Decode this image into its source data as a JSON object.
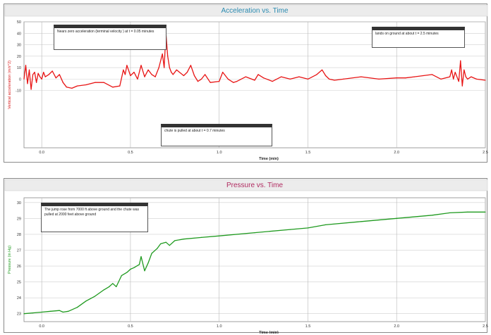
{
  "chart_data": [
    {
      "type": "line",
      "title": "Acceleration vs. Time",
      "xlabel": "Time (min)",
      "ylabel": "Vertical acceleration (m/s^2)",
      "xlim": [
        -0.1,
        2.5
      ],
      "ylim": [
        -60,
        50
      ],
      "xticks": [
        0,
        0.5,
        1.0,
        1.5,
        2.0,
        2.5
      ],
      "xtick_labels": [
        "0.0",
        "0.5",
        "1.0",
        "1.5",
        "2.0",
        "2.5"
      ],
      "yticks": [
        50,
        40,
        30,
        20,
        10,
        0,
        -10
      ],
      "ytick_labels": [
        "50",
        "40",
        "30",
        "20",
        "10",
        "0",
        "-10"
      ],
      "grid": true,
      "title_color": "#2a8ab0",
      "ylabel_color": "#d81b1b",
      "series": [
        {
          "color": "#e81414",
          "x": [
            -0.1,
            -0.09,
            -0.08,
            -0.07,
            -0.06,
            -0.05,
            -0.04,
            -0.03,
            -0.02,
            -0.01,
            0.0,
            0.01,
            0.02,
            0.04,
            0.06,
            0.08,
            0.1,
            0.12,
            0.14,
            0.17,
            0.2,
            0.25,
            0.3,
            0.35,
            0.4,
            0.44,
            0.46,
            0.47,
            0.48,
            0.5,
            0.52,
            0.54,
            0.56,
            0.58,
            0.6,
            0.62,
            0.64,
            0.66,
            0.68,
            0.69,
            0.7,
            0.71,
            0.72,
            0.73,
            0.74,
            0.76,
            0.8,
            0.82,
            0.84,
            0.86,
            0.88,
            0.9,
            0.92,
            0.95,
            1.0,
            1.02,
            1.05,
            1.08,
            1.1,
            1.15,
            1.2,
            1.22,
            1.25,
            1.3,
            1.35,
            1.4,
            1.45,
            1.5,
            1.55,
            1.58,
            1.6,
            1.62,
            1.65,
            1.7,
            1.8,
            1.9,
            2.0,
            2.05,
            2.1,
            2.15,
            2.2,
            2.25,
            2.3,
            2.31,
            2.32,
            2.33,
            2.35,
            2.36,
            2.37,
            2.38,
            2.39,
            2.4,
            2.42,
            2.45,
            2.5
          ],
          "y": [
            0,
            12,
            -4,
            8,
            -9,
            4,
            6,
            -3,
            5,
            2,
            0,
            6,
            2,
            4,
            7,
            1,
            4,
            -3,
            -7,
            -8,
            -6,
            -5,
            -3,
            -3,
            -7,
            -6,
            8,
            4,
            12,
            3,
            6,
            0,
            12,
            2,
            8,
            4,
            2,
            10,
            22,
            10,
            40,
            20,
            10,
            6,
            4,
            8,
            3,
            6,
            12,
            3,
            -2,
            0,
            4,
            -3,
            -2,
            6,
            0,
            -3,
            -2,
            2,
            -1,
            4,
            1,
            -2,
            2,
            0,
            2,
            0,
            4,
            8,
            3,
            0,
            -1,
            0,
            2,
            0,
            1,
            1,
            2,
            3,
            4,
            0,
            2,
            8,
            0,
            6,
            -2,
            16,
            -6,
            8,
            2,
            0,
            2,
            0,
            -1
          ]
        }
      ],
      "annotations": [
        {
          "text": "Nears zero acceleration (terminal velocity ) at t = 0.05 minutes"
        },
        {
          "text": "chute is pulled at about t = 0.7 minutes"
        },
        {
          "text": "lands on ground at about t = 2.5 minutes"
        }
      ]
    },
    {
      "type": "line",
      "title": "Pressure vs. Time",
      "xlabel": "Time (min)",
      "ylabel": "Pressure (in Hg)",
      "xlim": [
        -0.1,
        2.5
      ],
      "ylim": [
        22.5,
        30.3
      ],
      "xticks": [
        0,
        0.5,
        1.0,
        1.5,
        2.0,
        2.5
      ],
      "xtick_labels": [
        "0.0",
        "0.5",
        "1.0",
        "1.5",
        "2.0",
        "2.5"
      ],
      "yticks": [
        30,
        29,
        28,
        27,
        26,
        25,
        24,
        23
      ],
      "ytick_labels": [
        "30",
        "29",
        "28",
        "27",
        "26",
        "25",
        "24",
        "23"
      ],
      "grid": true,
      "title_color": "#b02a60",
      "ylabel_color": "#1a9a1a",
      "series": [
        {
          "color": "#1f9a1f",
          "x": [
            -0.1,
            -0.05,
            0.0,
            0.05,
            0.1,
            0.12,
            0.15,
            0.2,
            0.25,
            0.3,
            0.35,
            0.38,
            0.4,
            0.42,
            0.45,
            0.48,
            0.5,
            0.52,
            0.55,
            0.56,
            0.58,
            0.6,
            0.62,
            0.65,
            0.67,
            0.7,
            0.72,
            0.75,
            0.8,
            0.9,
            1.0,
            1.2,
            1.4,
            1.5,
            1.6,
            1.8,
            2.0,
            2.2,
            2.3,
            2.4,
            2.5
          ],
          "y": [
            23.0,
            23.05,
            23.1,
            23.15,
            23.2,
            23.1,
            23.15,
            23.4,
            23.8,
            24.1,
            24.5,
            24.7,
            24.9,
            24.7,
            25.4,
            25.6,
            25.8,
            25.9,
            26.1,
            26.6,
            25.7,
            26.2,
            26.8,
            27.1,
            27.4,
            27.5,
            27.3,
            27.6,
            27.7,
            27.8,
            27.9,
            28.1,
            28.3,
            28.4,
            28.6,
            28.8,
            29.0,
            29.2,
            29.35,
            29.4,
            29.4
          ]
        }
      ],
      "annotations": [
        {
          "text": "The jump rose from 7000 ft above ground and the chute was pulled at 2000 feet above ground"
        }
      ]
    }
  ]
}
